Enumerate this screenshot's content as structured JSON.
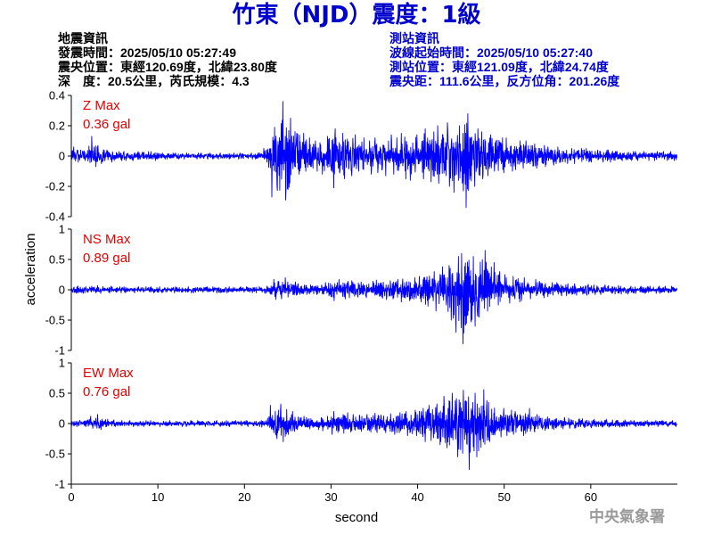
{
  "chart_data": {
    "type": "line",
    "title": "竹東（NJD）震度：1級",
    "xlabel": "second",
    "ylabel": "acceleration",
    "xlim": [
      0,
      70
    ],
    "xticks": [
      0,
      10,
      20,
      30,
      40,
      50,
      60
    ],
    "grid": false,
    "time_s": [
      0,
      1,
      2,
      3,
      4,
      5,
      6,
      7,
      8,
      9,
      10,
      11,
      12,
      13,
      14,
      15,
      16,
      17,
      18,
      19,
      20,
      21,
      22,
      23,
      24,
      25,
      26,
      27,
      28,
      29,
      30,
      31,
      32,
      33,
      34,
      35,
      36,
      37,
      38,
      39,
      40,
      41,
      42,
      43,
      44,
      45,
      46,
      47,
      48,
      49,
      50,
      51,
      52,
      53,
      54,
      55,
      56,
      57,
      58,
      59,
      60,
      61,
      62,
      63,
      64,
      65,
      66,
      67,
      68,
      69
    ],
    "series": [
      {
        "label": "Z Max",
        "peak_text": "0.36 gal",
        "ylim": [
          -0.4,
          0.4
        ],
        "yticks": [
          0.4,
          0.2,
          0,
          -0.2,
          -0.4
        ],
        "max": [
          0.06,
          0.04,
          0.13,
          0.07,
          0.04,
          0.03,
          0.03,
          0.03,
          0.03,
          0.03,
          0.02,
          0.02,
          0.02,
          0.02,
          0.02,
          0.02,
          0.02,
          0.02,
          0.02,
          0.02,
          0.02,
          0.02,
          0.05,
          0.19,
          0.36,
          0.25,
          0.15,
          0.12,
          0.1,
          0.13,
          0.18,
          0.15,
          0.14,
          0.12,
          0.1,
          0.12,
          0.14,
          0.12,
          0.15,
          0.14,
          0.18,
          0.16,
          0.2,
          0.22,
          0.2,
          0.28,
          0.18,
          0.16,
          0.14,
          0.12,
          0.12,
          0.1,
          0.1,
          0.08,
          0.07,
          0.06,
          0.06,
          0.05,
          0.05,
          0.05,
          0.04,
          0.04,
          0.04,
          0.03,
          0.03,
          0.03,
          0.03,
          0.03,
          0.03,
          0.03
        ],
        "min": [
          -0.04,
          -0.03,
          -0.07,
          -0.05,
          -0.04,
          -0.03,
          -0.03,
          -0.03,
          -0.02,
          -0.03,
          -0.02,
          -0.02,
          -0.02,
          -0.02,
          -0.02,
          -0.02,
          -0.02,
          -0.02,
          -0.02,
          -0.02,
          -0.02,
          -0.02,
          -0.04,
          -0.27,
          -0.29,
          -0.22,
          -0.12,
          -0.1,
          -0.1,
          -0.12,
          -0.21,
          -0.15,
          -0.13,
          -0.1,
          -0.12,
          -0.11,
          -0.13,
          -0.12,
          -0.15,
          -0.16,
          -0.15,
          -0.17,
          -0.18,
          -0.2,
          -0.24,
          -0.34,
          -0.2,
          -0.15,
          -0.13,
          -0.11,
          -0.1,
          -0.09,
          -0.08,
          -0.08,
          -0.07,
          -0.06,
          -0.05,
          -0.05,
          -0.05,
          -0.04,
          -0.04,
          -0.04,
          -0.04,
          -0.03,
          -0.03,
          -0.03,
          -0.03,
          -0.03,
          -0.03,
          -0.03
        ]
      },
      {
        "label": "NS Max",
        "peak_text": "0.89 gal",
        "ylim": [
          -1,
          1
        ],
        "yticks": [
          1,
          0.5,
          0,
          -0.5,
          -1
        ],
        "max": [
          0.06,
          0.05,
          0.06,
          0.07,
          0.06,
          0.05,
          0.05,
          0.05,
          0.05,
          0.05,
          0.05,
          0.04,
          0.05,
          0.05,
          0.04,
          0.05,
          0.05,
          0.04,
          0.05,
          0.05,
          0.05,
          0.05,
          0.06,
          0.17,
          0.2,
          0.13,
          0.1,
          0.08,
          0.08,
          0.12,
          0.17,
          0.14,
          0.15,
          0.13,
          0.14,
          0.16,
          0.15,
          0.17,
          0.18,
          0.2,
          0.22,
          0.3,
          0.38,
          0.4,
          0.55,
          0.6,
          0.55,
          0.65,
          0.45,
          0.3,
          0.25,
          0.22,
          0.2,
          0.17,
          0.14,
          0.12,
          0.12,
          0.1,
          0.1,
          0.09,
          0.08,
          0.08,
          0.07,
          0.07,
          0.06,
          0.06,
          0.06,
          0.06,
          0.06,
          0.06
        ],
        "min": [
          -0.06,
          -0.06,
          -0.05,
          -0.06,
          -0.05,
          -0.05,
          -0.05,
          -0.05,
          -0.04,
          -0.05,
          -0.05,
          -0.05,
          -0.04,
          -0.05,
          -0.05,
          -0.04,
          -0.05,
          -0.05,
          -0.05,
          -0.04,
          -0.05,
          -0.05,
          -0.06,
          -0.16,
          -0.15,
          -0.12,
          -0.09,
          -0.08,
          -0.08,
          -0.1,
          -0.18,
          -0.15,
          -0.13,
          -0.12,
          -0.13,
          -0.14,
          -0.16,
          -0.15,
          -0.2,
          -0.18,
          -0.24,
          -0.27,
          -0.35,
          -0.5,
          -0.7,
          -0.89,
          -0.6,
          -0.45,
          -0.35,
          -0.25,
          -0.22,
          -0.2,
          -0.18,
          -0.15,
          -0.13,
          -0.11,
          -0.1,
          -0.1,
          -0.09,
          -0.09,
          -0.08,
          -0.08,
          -0.07,
          -0.07,
          -0.07,
          -0.06,
          -0.06,
          -0.06,
          -0.06,
          -0.05
        ]
      },
      {
        "label": "EW Max",
        "peak_text": "0.76 gal",
        "ylim": [
          -1,
          1
        ],
        "yticks": [
          1,
          0.5,
          0,
          -0.5,
          -1
        ],
        "max": [
          0.05,
          0.05,
          0.12,
          0.15,
          0.06,
          0.05,
          0.05,
          0.04,
          0.05,
          0.05,
          0.04,
          0.05,
          0.04,
          0.05,
          0.05,
          0.04,
          0.05,
          0.05,
          0.04,
          0.05,
          0.05,
          0.05,
          0.08,
          0.3,
          0.32,
          0.2,
          0.12,
          0.1,
          0.1,
          0.12,
          0.2,
          0.18,
          0.15,
          0.14,
          0.15,
          0.17,
          0.16,
          0.18,
          0.2,
          0.22,
          0.25,
          0.3,
          0.32,
          0.45,
          0.5,
          0.55,
          0.5,
          0.56,
          0.35,
          0.25,
          0.22,
          0.2,
          0.25,
          0.15,
          0.12,
          0.11,
          0.1,
          0.09,
          0.08,
          0.08,
          0.07,
          0.07,
          0.06,
          0.06,
          0.05,
          0.05,
          0.05,
          0.05,
          0.05,
          0.05
        ],
        "min": [
          -0.05,
          -0.05,
          -0.08,
          -0.1,
          -0.05,
          -0.05,
          -0.04,
          -0.05,
          -0.05,
          -0.04,
          -0.05,
          -0.04,
          -0.05,
          -0.05,
          -0.04,
          -0.05,
          -0.04,
          -0.05,
          -0.05,
          -0.04,
          -0.05,
          -0.05,
          -0.06,
          -0.25,
          -0.3,
          -0.18,
          -0.1,
          -0.09,
          -0.1,
          -0.12,
          -0.18,
          -0.16,
          -0.14,
          -0.13,
          -0.14,
          -0.15,
          -0.15,
          -0.18,
          -0.2,
          -0.2,
          -0.3,
          -0.28,
          -0.35,
          -0.4,
          -0.55,
          -0.76,
          -0.55,
          -0.45,
          -0.3,
          -0.22,
          -0.2,
          -0.18,
          -0.2,
          -0.14,
          -0.11,
          -0.1,
          -0.09,
          -0.08,
          -0.08,
          -0.07,
          -0.07,
          -0.06,
          -0.06,
          -0.06,
          -0.05,
          -0.05,
          -0.05,
          -0.05,
          -0.05,
          -0.05
        ]
      }
    ]
  },
  "info": {
    "earthquake": {
      "heading": "地震資訊",
      "lines": [
        "發震時間：2025/05/10 05:27:49",
        "震央位置：東經120.69度，北緯23.80度",
        "深　度：20.5公里，芮氏規模：4.3"
      ]
    },
    "station": {
      "heading": "測站資訊",
      "lines": [
        "波線起始時間：2025/05/10 05:27:40",
        "測站位置：東經121.09度，北緯24.74度",
        "震央距：111.6公里，反方位角：201.26度"
      ]
    }
  },
  "footer": {
    "agency": "中央氣象署"
  },
  "colors": {
    "title": "#0000cc",
    "earthquake_info": "#000000",
    "station_info": "#0000cc",
    "trace": "#0000ff",
    "peak_label": "#e60000",
    "footer": "#9a9a9a"
  }
}
